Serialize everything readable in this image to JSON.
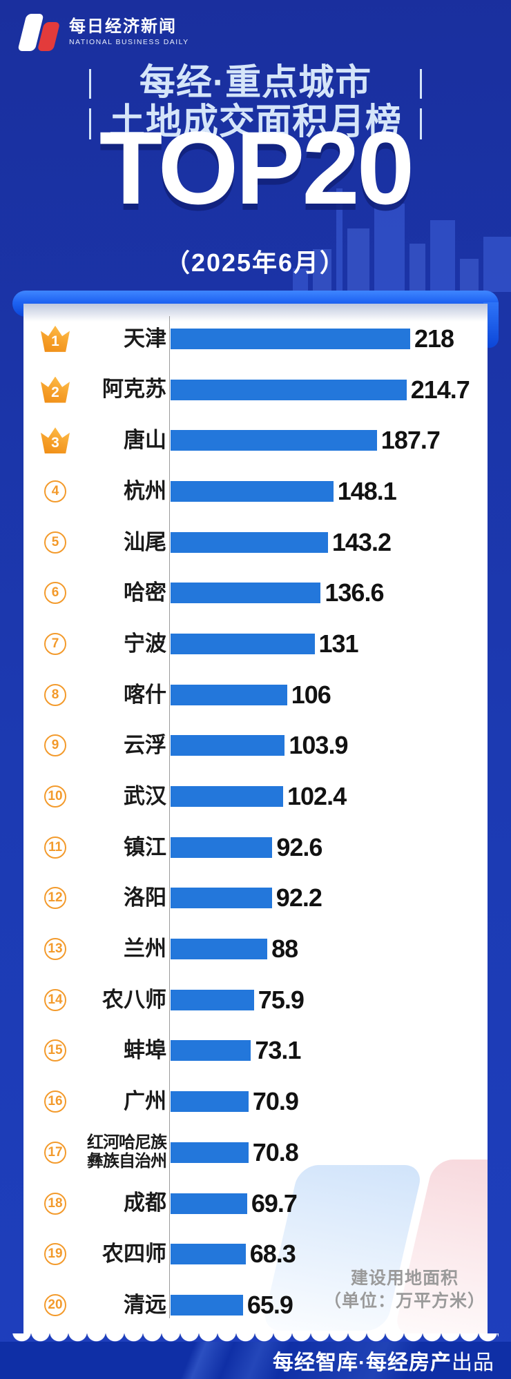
{
  "header": {
    "brand_cn": "每日经济新闻",
    "brand_en": "NATIONAL BUSINESS DAILY",
    "title_line1": "每经·重点城市",
    "title_line2": "土地成交面积月榜",
    "top_label": "TOP20",
    "period": "（2025年6月）"
  },
  "chart_data": {
    "type": "bar",
    "orientation": "horizontal",
    "title": "每经·重点城市土地成交面积月榜 TOP20（2025年6月）",
    "value_label": "建设用地面积",
    "unit": "万平方米",
    "unit_note_line1": "建设用地面积",
    "unit_note_line2": "（单位：万平方米）",
    "xlim": [
      0,
      218
    ],
    "rows": [
      {
        "rank": 1,
        "city": "天津",
        "value": 218
      },
      {
        "rank": 2,
        "city": "阿克苏",
        "value": 214.7
      },
      {
        "rank": 3,
        "city": "唐山",
        "value": 187.7
      },
      {
        "rank": 4,
        "city": "杭州",
        "value": 148.1
      },
      {
        "rank": 5,
        "city": "汕尾",
        "value": 143.2
      },
      {
        "rank": 6,
        "city": "哈密",
        "value": 136.6
      },
      {
        "rank": 7,
        "city": "宁波",
        "value": 131
      },
      {
        "rank": 8,
        "city": "喀什",
        "value": 106
      },
      {
        "rank": 9,
        "city": "云浮",
        "value": 103.9
      },
      {
        "rank": 10,
        "city": "武汉",
        "value": 102.4
      },
      {
        "rank": 11,
        "city": "镇江",
        "value": 92.6
      },
      {
        "rank": 12,
        "city": "洛阳",
        "value": 92.2
      },
      {
        "rank": 13,
        "city": "兰州",
        "value": 88
      },
      {
        "rank": 14,
        "city": "农八师",
        "value": 75.9
      },
      {
        "rank": 15,
        "city": "蚌埠",
        "value": 73.1
      },
      {
        "rank": 16,
        "city": "广州",
        "value": 70.9
      },
      {
        "rank": 17,
        "city": "红河哈尼族\n彝族自治州",
        "value": 70.8
      },
      {
        "rank": 18,
        "city": "成都",
        "value": 69.7
      },
      {
        "rank": 19,
        "city": "农四师",
        "value": 68.3
      },
      {
        "rank": 20,
        "city": "清远",
        "value": 65.9
      }
    ]
  },
  "footer": {
    "credit_bold": "每经智库·每经房产",
    "credit_light": "出品"
  },
  "colors": {
    "background_blue": "#1A2F9E",
    "bright_blue": "#1E63F2",
    "bar_blue": "#2377DB",
    "badge_orange": "#F39A2B",
    "title_light_blue": "#D5E5F9",
    "footer_blue": "#0F2FA6",
    "text_dark": "#1A1A1A",
    "note_gray": "#9A9A9A"
  }
}
